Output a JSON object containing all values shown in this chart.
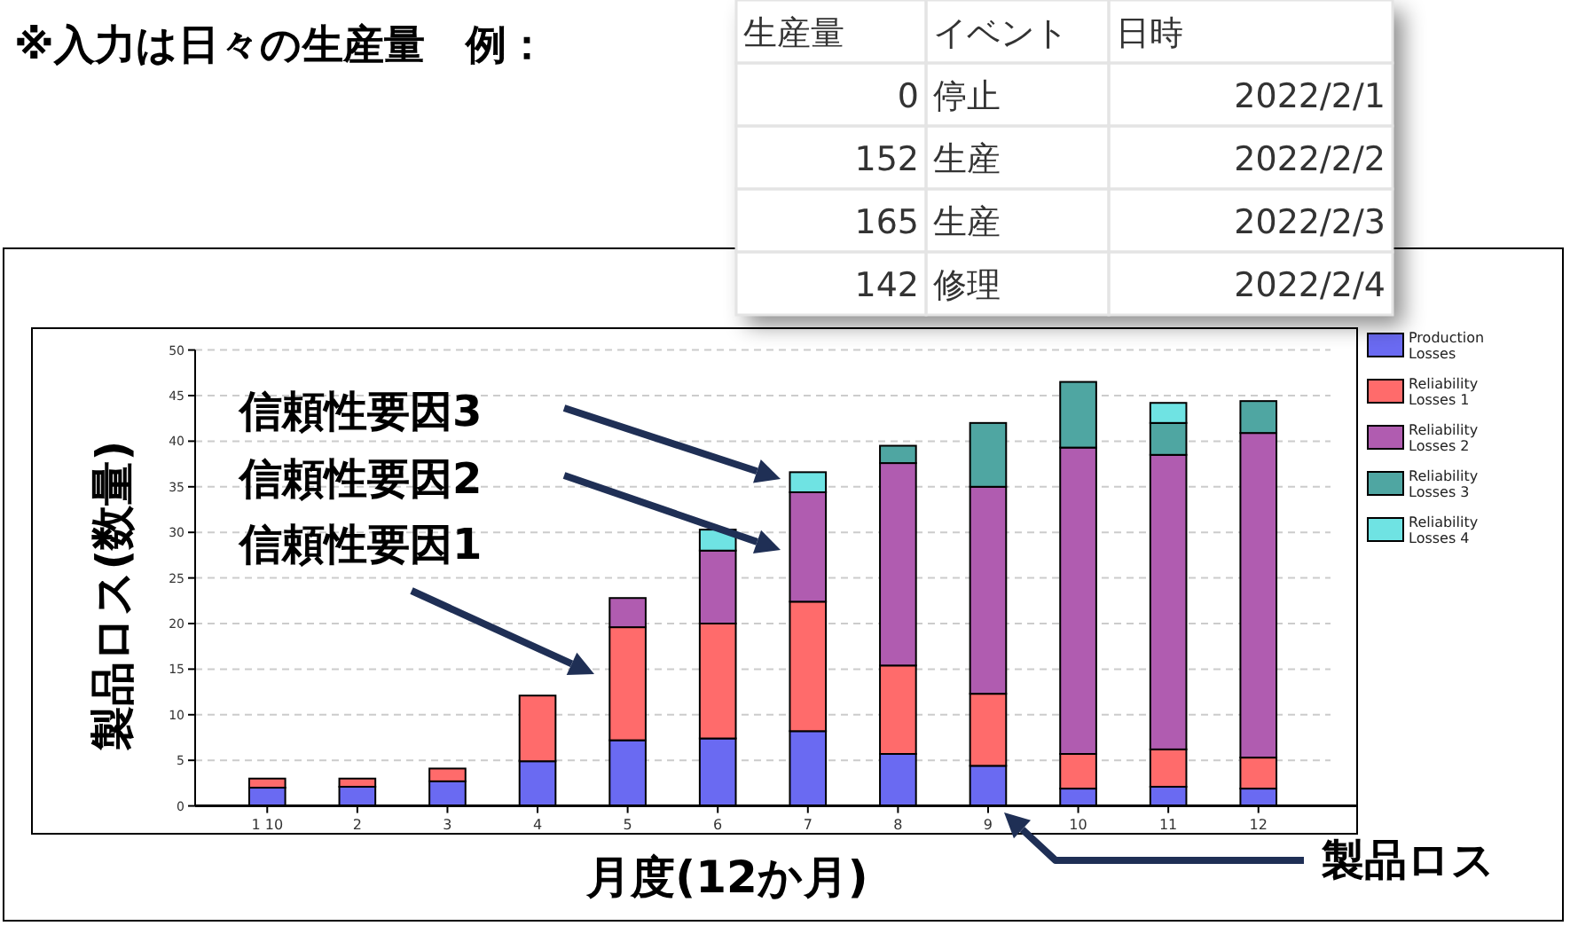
{
  "chart_data": {
    "type": "bar",
    "stacked": true,
    "categories": [
      "1 10",
      "2",
      "3",
      "4",
      "5",
      "6",
      "7",
      "8",
      "9",
      "10",
      "11",
      "12"
    ],
    "series": [
      {
        "name": "Production Losses",
        "color": "#6a6af2",
        "values": [
          2,
          2.1,
          2.7,
          4.9,
          7.2,
          7.4,
          8.2,
          5.7,
          4.4,
          1.9,
          2.1,
          1.9
        ]
      },
      {
        "name": "Reliability Losses 1",
        "color": "#ff6b6b",
        "values": [
          1,
          0.9,
          1.4,
          7.2,
          12.4,
          12.6,
          14.2,
          9.7,
          7.9,
          3.8,
          4.1,
          3.4
        ]
      },
      {
        "name": "Reliability Losses 2",
        "color": "#b05cb0",
        "values": [
          null,
          null,
          null,
          null,
          3.2,
          8,
          12,
          22.2,
          22.7,
          33.6,
          32.3,
          35.6
        ]
      },
      {
        "name": "Reliability Losses 3",
        "color": "#4fa6a2",
        "values": [
          null,
          null,
          null,
          null,
          null,
          null,
          null,
          1.9,
          7,
          7.2,
          3.5,
          3.5
        ]
      },
      {
        "name": "Reliability Losses 4",
        "color": "#6fe3e3",
        "values": [
          null,
          null,
          null,
          null,
          null,
          2.3,
          2.2,
          null,
          null,
          null,
          2.2,
          null
        ]
      }
    ],
    "ylim": [
      0,
      50
    ],
    "yticks": [
      0,
      5,
      10,
      15,
      20,
      25,
      30,
      35,
      40,
      45,
      50
    ],
    "grid": "y",
    "legend": "top right",
    "xlabel": "月度(12か月)",
    "ylabel": "製品ロス(数量)",
    "annotations": [
      "※入力は日々の生産量　例：",
      "生産量",
      "イベント",
      "日時",
      "0",
      "停止",
      "2022/2/1",
      "152",
      "生産",
      "2022/2/2",
      "165",
      "生産",
      "2022/2/3",
      "142",
      "修理",
      "2022/2/4",
      "信頼性要因3",
      "信頼性要因2",
      "信頼性要因1",
      "製品ロス"
    ]
  }
}
